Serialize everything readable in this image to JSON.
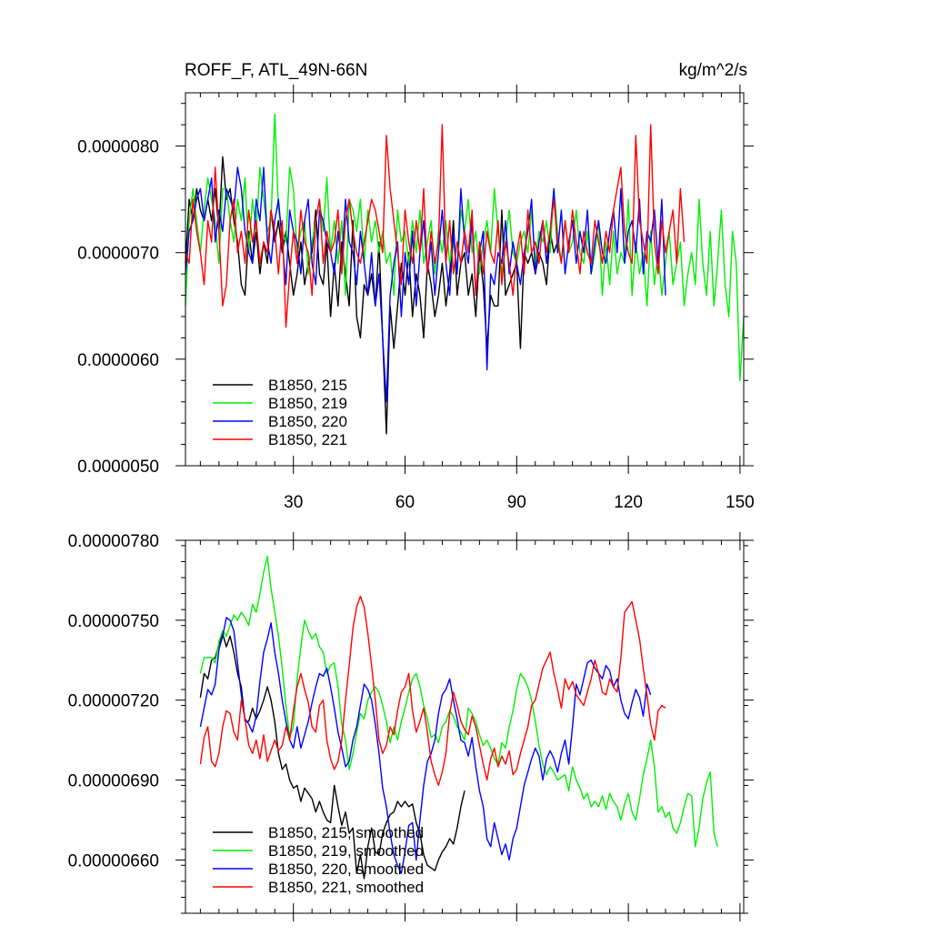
{
  "chart_data": [
    {
      "type": "line",
      "title": "ROFF_F, ATL_49N-66N",
      "units": "kg/m^2/s",
      "xlim": [
        1,
        151
      ],
      "ylim": [
        5e-06,
        8.5e-06
      ],
      "x_ticks": [
        30,
        60,
        90,
        120,
        150
      ],
      "x_tick_labels": [
        "30",
        "60",
        "90",
        "120",
        "150"
      ],
      "y_ticks": [
        5e-06,
        6e-06,
        7e-06,
        8e-06
      ],
      "y_tick_labels": [
        "0.0000050",
        "0.0000060",
        "0.0000070",
        "0.0000080"
      ],
      "legend": {
        "placement": "bottom-left",
        "labels": [
          "B1850, 215",
          "B1850, 219",
          "B1850, 220",
          "B1850, 221"
        ]
      },
      "series": [
        {
          "name": "B1850, 215",
          "color": "#000000",
          "x_start": 1,
          "values": [
            6.9,
            7.5,
            7.3,
            7.6,
            7.4,
            7.3,
            7.5,
            7.3,
            7.6,
            7.2,
            7.9,
            7.5,
            7.6,
            7.3,
            7.1,
            6.7,
            6.6,
            7.2,
            6.9,
            7.2,
            6.8,
            7.1,
            6.9,
            7.4,
            7.1,
            7.3,
            7.0,
            7.2,
            6.9,
            6.6,
            6.8,
            7.1,
            6.7,
            6.9,
            7.0,
            7.4,
            6.8,
            6.7,
            7.1,
            6.4,
            6.9,
            6.5,
            7.1,
            6.8,
            6.5,
            7.3,
            6.4,
            6.2,
            6.7,
            6.6,
            6.8,
            6.5,
            7.1,
            6.2,
            5.3,
            6.5,
            6.1,
            6.5,
            6.9,
            6.6,
            7.0,
            6.4,
            6.8,
            6.6,
            6.2,
            6.9,
            6.7,
            6.4,
            6.6,
            6.9,
            6.5,
            6.8,
            7.3,
            6.6,
            6.9,
            7.0,
            6.6,
            6.8,
            6.4,
            7.0,
            6.7,
            6.1,
            6.6,
            6.5,
            6.5,
            7.4,
            6.6,
            6.7,
            6.8,
            6.9,
            6.1,
            7.0,
            6.9,
            7.0,
            6.8,
            7.0,
            6.9,
            6.7,
            7.2,
            7.0,
            7.1
          ]
        },
        {
          "name": "B1850, 219",
          "color": "#00ee00",
          "x_start": 1,
          "values": [
            6.5,
            7.3,
            7.6,
            7.3,
            7.0,
            7.4,
            7.7,
            7.5,
            7.3,
            6.9,
            7.6,
            7.6,
            7.3,
            7.1,
            7.5,
            7.3,
            7.7,
            7.0,
            7.5,
            7.2,
            7.8,
            7.5,
            7.2,
            7.3,
            8.3,
            7.4,
            7.2,
            7.1,
            7.8,
            7.6,
            7.0,
            7.2,
            7.3,
            6.8,
            7.1,
            7.3,
            7.5,
            7.2,
            7.7,
            7.0,
            7.3,
            6.9,
            7.3,
            6.6,
            7.5,
            7.4,
            7.2,
            7.5,
            6.9,
            7.4,
            7.1,
            7.3,
            7.0,
            7.2,
            6.9,
            7.0,
            6.6,
            7.4,
            7.1,
            7.2,
            6.9,
            7.3,
            7.0,
            7.4,
            6.9,
            7.1,
            7.3,
            6.8,
            7.2,
            7.0,
            7.3,
            6.9,
            7.1,
            6.8,
            7.4,
            7.2,
            7.5,
            7.0,
            7.2,
            6.8,
            7.1,
            7.3,
            7.0,
            7.6,
            7.2,
            6.8,
            7.1,
            7.4,
            7.0,
            6.9,
            7.1,
            7.2,
            7.0,
            7.4,
            6.9,
            7.2,
            7.1,
            7.3,
            7.0,
            7.6,
            7.2,
            6.9,
            7.3,
            7.0,
            7.1,
            7.4,
            7.0,
            6.9,
            7.2,
            6.8,
            7.0,
            7.3,
            6.6,
            7.1,
            6.7,
            7.2,
            6.8,
            7.0,
            6.9,
            7.5,
            6.6,
            7.1,
            6.8,
            7.0,
            6.5,
            7.2,
            6.7,
            7.0,
            6.6,
            6.9,
            7.2,
            6.7,
            6.9,
            7.1,
            6.5,
            6.8,
            7.0,
            6.7,
            7.5,
            6.9,
            6.6,
            7.2,
            6.5,
            6.9,
            7.4,
            6.7,
            6.4,
            7.2,
            6.9,
            5.8,
            6.4
          ]
        },
        {
          "name": "B1850, 220",
          "color": "#0000ff",
          "x_start": 1,
          "values": [
            6.8,
            7.2,
            7.3,
            7.5,
            7.6,
            7.3,
            7.5,
            7.7,
            7.1,
            7.4,
            7.2,
            7.6,
            7.5,
            7.4,
            7.8,
            7.6,
            7.2,
            7.0,
            6.9,
            7.5,
            7.3,
            7.8,
            7.1,
            6.9,
            7.3,
            7.5,
            7.1,
            6.7,
            7.4,
            7.2,
            7.1,
            6.8,
            7.3,
            7.5,
            6.9,
            6.7,
            7.4,
            7.3,
            7.1,
            7.0,
            6.8,
            7.2,
            6.9,
            7.5,
            7.1,
            7.0,
            6.7,
            7.2,
            6.9,
            6.6,
            7.0,
            6.5,
            6.8,
            6.2,
            5.6,
            6.6,
            6.9,
            7.1,
            6.4,
            7.0,
            6.7,
            7.2,
            6.5,
            7.0,
            7.3,
            6.8,
            7.1,
            6.6,
            7.0,
            7.4,
            6.9,
            6.6,
            7.2,
            6.8,
            7.6,
            7.1,
            6.9,
            7.3,
            6.6,
            7.0,
            7.2,
            5.9,
            6.8,
            6.7,
            7.0,
            6.9,
            7.3,
            6.8,
            7.1,
            6.9,
            6.7,
            7.0,
            7.2,
            7.5,
            6.8,
            7.1,
            7.3,
            6.9,
            7.2,
            7.6,
            7.0,
            7.4,
            6.8,
            7.1,
            7.3,
            6.9,
            7.2,
            7.0,
            7.4,
            6.8,
            7.1,
            7.3,
            7.0,
            6.9,
            7.2,
            7.4,
            7.0,
            7.6,
            6.9,
            7.2,
            7.3,
            7.0,
            7.5,
            6.8,
            7.2,
            7.1,
            7.4,
            6.9,
            7.5,
            6.6
          ]
        },
        {
          "name": "B1850, 221",
          "color": "#ff0000",
          "x_start": 1,
          "values": [
            7.0,
            6.9,
            7.5,
            7.2,
            7.0,
            6.7,
            7.3,
            7.1,
            7.8,
            7.2,
            6.5,
            6.7,
            7.3,
            7.5,
            7.0,
            7.2,
            6.9,
            7.4,
            7.1,
            7.3,
            6.9,
            7.1,
            7.0,
            7.4,
            7.2,
            6.8,
            7.3,
            6.3,
            6.8,
            7.2,
            6.9,
            7.4,
            7.1,
            7.0,
            6.6,
            7.3,
            7.5,
            6.9,
            7.2,
            7.0,
            7.1,
            7.4,
            6.8,
            7.3,
            7.5,
            7.2,
            7.0,
            6.9,
            7.1,
            7.3,
            7.5,
            7.4,
            7.2,
            7.0,
            8.1,
            7.6,
            7.3,
            7.0,
            6.7,
            7.4,
            7.1,
            6.9,
            7.3,
            7.0,
            7.6,
            6.8,
            7.2,
            6.9,
            7.1,
            8.2,
            6.9,
            7.3,
            6.8,
            7.1,
            6.9,
            7.2,
            7.0,
            7.4,
            6.6,
            7.1,
            6.8,
            7.2,
            7.0,
            6.9,
            7.3,
            6.7,
            7.1,
            6.9,
            6.6,
            7.0,
            7.2,
            6.8,
            7.4,
            7.0,
            7.1,
            6.9,
            7.3,
            7.0,
            7.2,
            7.5,
            7.1,
            6.9,
            7.3,
            7.0,
            7.4,
            7.1,
            6.8,
            7.2,
            7.0,
            6.9,
            7.3,
            7.1,
            6.9,
            7.2,
            7.0,
            7.4,
            7.6,
            7.8,
            7.2,
            7.0,
            6.9,
            8.1,
            7.3,
            7.1,
            6.9,
            8.2,
            7.1,
            6.8,
            7.3,
            7.0,
            7.2,
            7.4,
            6.9,
            7.6,
            7.1
          ]
        }
      ]
    },
    {
      "type": "line",
      "xlim": [
        1,
        151
      ],
      "ylim": [
        6.4e-06,
        7.8e-06
      ],
      "x_ticks": [
        30,
        60,
        90,
        120,
        150
      ],
      "y_ticks": [
        6.6e-06,
        6.9e-06,
        7.2e-06,
        7.5e-06,
        7.8e-06
      ],
      "y_tick_labels": [
        "0.00000660",
        "0.00000690",
        "0.00000720",
        "0.00000750",
        "0.00000780"
      ],
      "legend": {
        "placement": "bottom-left",
        "labels": [
          "B1850, 215, smoothed",
          "B1850, 219, smoothed",
          "B1850, 220, smoothed",
          "B1850, 221, smoothed"
        ]
      },
      "series": [
        {
          "name": "B1850, 215, smoothed",
          "color": "#000000",
          "x_start": 5,
          "values": [
            7.21,
            7.3,
            7.28,
            7.35,
            7.36,
            7.41,
            7.45,
            7.4,
            7.44,
            7.38,
            7.3,
            7.25,
            7.12,
            7.12,
            7.17,
            7.13,
            7.16,
            7.2,
            7.25,
            7.2,
            7.12,
            7.0,
            6.94,
            6.96,
            6.9,
            6.87,
            6.88,
            6.82,
            6.87,
            6.85,
            6.83,
            6.78,
            6.82,
            6.78,
            6.75,
            6.74,
            6.88,
            6.8,
            6.73,
            6.78,
            6.7,
            6.72,
            6.55,
            6.62,
            6.53,
            6.65,
            6.72,
            6.63,
            6.62,
            6.7,
            6.74,
            6.77,
            6.78,
            6.82,
            6.8,
            6.82,
            6.8,
            6.81,
            6.74,
            6.7,
            6.62,
            6.58,
            6.57,
            6.56,
            6.6,
            6.63,
            6.65,
            6.68,
            6.66,
            6.72,
            6.8,
            6.86
          ]
        },
        {
          "name": "B1850, 219, smoothed",
          "color": "#00ee00",
          "x_start": 5,
          "values": [
            7.3,
            7.36,
            7.36,
            7.36,
            7.34,
            7.42,
            7.46,
            7.44,
            7.48,
            7.52,
            7.5,
            7.53,
            7.51,
            7.48,
            7.56,
            7.53,
            7.6,
            7.68,
            7.74,
            7.62,
            7.53,
            7.44,
            7.32,
            7.18,
            7.06,
            7.1,
            7.28,
            7.4,
            7.5,
            7.46,
            7.43,
            7.45,
            7.4,
            7.38,
            7.3,
            7.33,
            7.34,
            7.25,
            7.11,
            7.05,
            6.94,
            7.0,
            7.08,
            7.15,
            7.13,
            7.2,
            7.23,
            7.25,
            7.23,
            7.18,
            7.12,
            7.04,
            7.1,
            7.05,
            7.12,
            7.17,
            7.23,
            7.28,
            7.3,
            7.25,
            7.18,
            7.13,
            7.06,
            7.07,
            7.04,
            7.1,
            7.12,
            7.16,
            7.14,
            7.1,
            7.08,
            7.05,
            7.17,
            7.15,
            7.12,
            7.07,
            7.03,
            7.05,
            7.02,
            6.98,
            6.96,
            7.04,
            7.02,
            7.1,
            7.16,
            7.24,
            7.3,
            7.28,
            7.25,
            7.2,
            7.12,
            7.03,
            6.96,
            6.92,
            6.95,
            6.93,
            6.9,
            6.91,
            6.92,
            6.86,
            6.95,
            6.9,
            6.87,
            6.83,
            6.85,
            6.8,
            6.82,
            6.8,
            6.84,
            6.79,
            6.85,
            6.82,
            6.8,
            6.75,
            6.81,
            6.85,
            6.78,
            6.75,
            6.83,
            6.92,
            6.98,
            7.05,
            6.95,
            6.78,
            6.8,
            6.76,
            6.78,
            6.72,
            6.7,
            6.74,
            6.8,
            6.85,
            6.84,
            6.65,
            6.72,
            6.83,
            6.89,
            6.93,
            6.7,
            6.65
          ]
        },
        {
          "name": "B1850, 220, smoothed",
          "color": "#0000ff",
          "x_start": 5,
          "values": [
            7.1,
            7.17,
            7.24,
            7.22,
            7.26,
            7.39,
            7.44,
            7.51,
            7.5,
            7.46,
            7.34,
            7.22,
            7.13,
            7.11,
            7.08,
            7.14,
            7.27,
            7.38,
            7.43,
            7.49,
            7.38,
            7.3,
            7.2,
            7.12,
            7.05,
            7.02,
            7.1,
            7.02,
            7.07,
            7.12,
            7.19,
            7.25,
            7.3,
            7.29,
            7.32,
            7.25,
            7.17,
            7.08,
            7.02,
            6.95,
            6.97,
            7.05,
            7.1,
            7.18,
            7.26,
            7.24,
            7.2,
            7.11,
            7.0,
            6.87,
            6.8,
            6.7,
            6.62,
            6.58,
            6.55,
            6.63,
            6.73,
            6.74,
            6.6,
            6.75,
            6.88,
            6.97,
            7.0,
            7.05,
            7.15,
            7.22,
            7.24,
            7.28,
            7.2,
            7.13,
            7.05,
            7.04,
            6.99,
            7.06,
            6.95,
            6.86,
            6.8,
            6.68,
            6.65,
            6.74,
            6.68,
            6.62,
            6.66,
            6.6,
            6.68,
            6.72,
            6.8,
            6.88,
            6.93,
            6.98,
            7.02,
            6.99,
            6.9,
            6.98,
            7.01,
            6.98,
            6.93,
            7.0,
            7.05,
            6.96,
            7.1,
            7.26,
            7.22,
            7.28,
            7.34,
            7.35,
            7.32,
            7.3,
            7.28,
            7.33,
            7.31,
            7.25,
            7.28,
            7.2,
            7.15,
            7.13,
            7.19,
            7.24,
            7.21,
            7.14,
            7.26,
            7.22
          ]
        },
        {
          "name": "B1850, 221, smoothed",
          "color": "#ff0000",
          "x_start": 5,
          "values": [
            6.96,
            7.06,
            7.1,
            6.97,
            6.95,
            7.0,
            7.1,
            7.16,
            7.15,
            7.08,
            7.05,
            7.2,
            7.13,
            7.03,
            7.0,
            7.05,
            6.98,
            7.07,
            6.97,
            7.01,
            7.05,
            7.01,
            7.03,
            7.1,
            7.05,
            7.16,
            7.25,
            7.3,
            7.24,
            7.19,
            7.1,
            7.08,
            7.18,
            7.2,
            7.05,
            6.98,
            6.94,
            6.97,
            7.05,
            7.2,
            7.33,
            7.47,
            7.55,
            7.59,
            7.55,
            7.45,
            7.33,
            7.2,
            7.05,
            7.0,
            7.03,
            7.1,
            7.07,
            7.16,
            7.23,
            7.25,
            7.3,
            7.16,
            7.08,
            7.12,
            7.17,
            7.08,
            6.97,
            6.92,
            6.88,
            6.93,
            7.0,
            7.15,
            7.23,
            7.18,
            7.12,
            7.09,
            7.07,
            7.14,
            7.1,
            7.03,
            6.96,
            6.9,
            6.98,
            7.02,
            6.95,
            6.99,
            6.96,
            7.01,
            6.92,
            6.94,
            7.0,
            7.05,
            7.1,
            7.18,
            7.2,
            7.26,
            7.32,
            7.35,
            7.38,
            7.3,
            7.24,
            7.17,
            7.28,
            7.24,
            7.27,
            7.22,
            7.2,
            7.18,
            7.23,
            7.28,
            7.35,
            7.3,
            7.23,
            7.22,
            7.28,
            7.25,
            7.23,
            7.36,
            7.53,
            7.55,
            7.57,
            7.5,
            7.43,
            7.32,
            7.22,
            7.11,
            7.05,
            7.16,
            7.18,
            7.17
          ]
        }
      ]
    }
  ]
}
